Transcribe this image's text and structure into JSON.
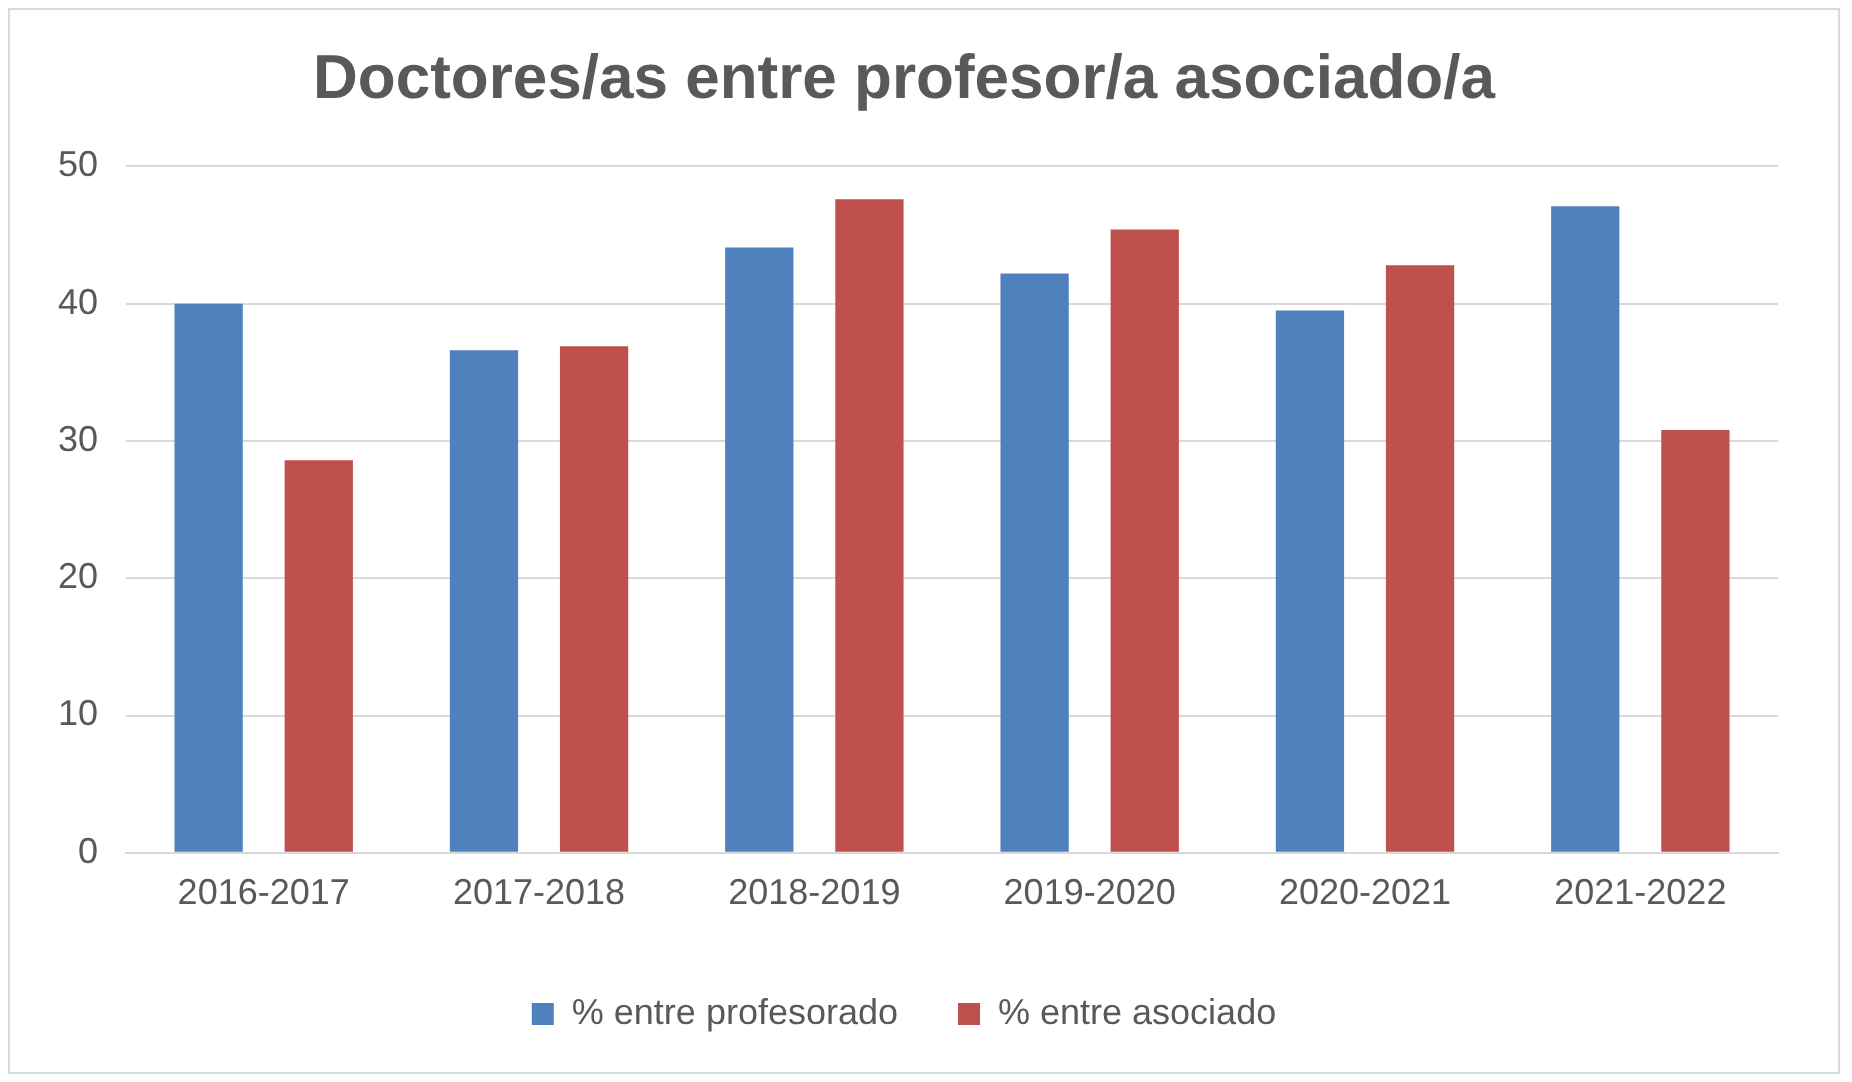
{
  "chart_data": {
    "type": "bar",
    "title": "Doctores/as entre profesor/a asociado/a",
    "categories": [
      "2016-2017",
      "2017-2018",
      "2018-2019",
      "2019-2020",
      "2020-2021",
      "2021-2022"
    ],
    "series": [
      {
        "name": "% entre profesorado",
        "color": "#4f81bd",
        "values": [
          40,
          36.6,
          44.1,
          42.2,
          39.5,
          47.1
        ]
      },
      {
        "name": "% entre asociado",
        "color": "#c0504d",
        "values": [
          28.6,
          36.9,
          47.6,
          45.4,
          42.8,
          30.8
        ]
      }
    ],
    "ylim": [
      0,
      50
    ],
    "yticks": [
      0,
      10,
      20,
      30,
      40,
      50
    ],
    "grid": "y",
    "legend": "bottom"
  }
}
